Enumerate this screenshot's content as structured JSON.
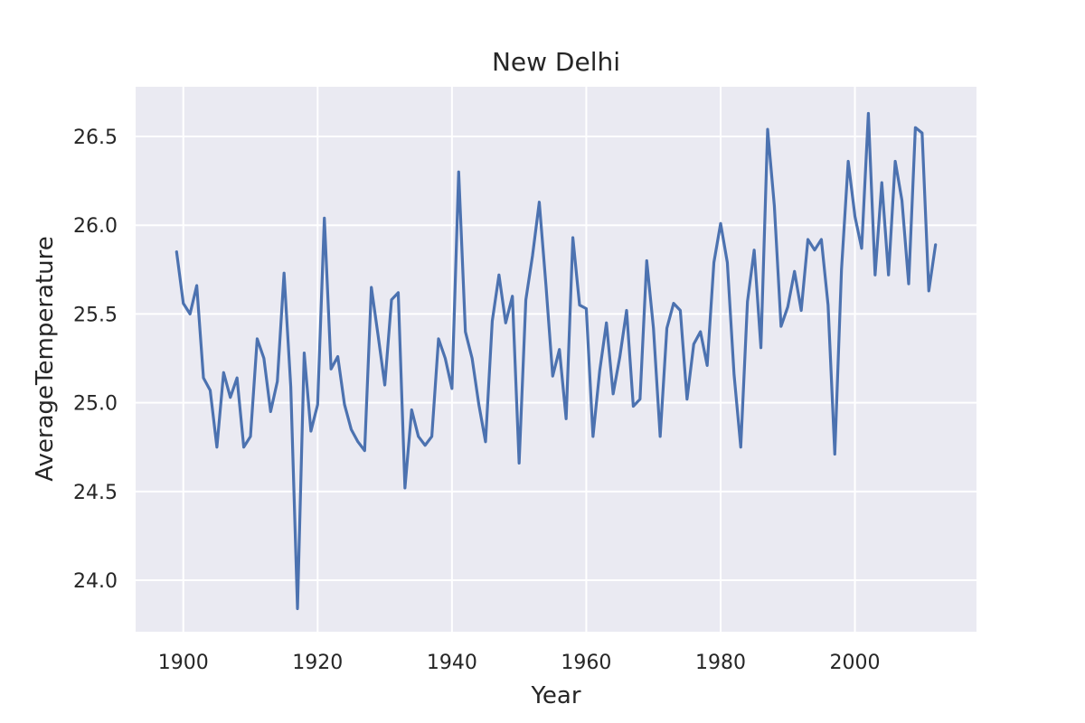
{
  "chart_data": {
    "type": "line",
    "title": "New Delhi",
    "xlabel": "Year",
    "ylabel": "AverageTemperature",
    "xlim": [
      1892.9,
      2018.1
    ],
    "ylim": [
      23.71,
      26.78
    ],
    "xticks": [
      1900,
      1920,
      1940,
      1960,
      1980,
      2000
    ],
    "yticks": [
      24.0,
      24.5,
      25.0,
      25.5,
      26.0,
      26.5
    ],
    "ytick_labels": [
      "24.0",
      "24.5",
      "25.0",
      "25.5",
      "26.0",
      "26.5"
    ],
    "grid": true,
    "background_color": "#eaeaf2",
    "grid_color": "#ffffff",
    "line_color": "#4c72b0",
    "series": [
      {
        "x": [
          1899,
          1900,
          1901,
          1902,
          1903,
          1904,
          1905,
          1906,
          1907,
          1908,
          1909,
          1910,
          1911,
          1912,
          1913,
          1914,
          1915,
          1916,
          1917,
          1918,
          1919,
          1920,
          1921,
          1922,
          1923,
          1924,
          1925,
          1926,
          1927,
          1928,
          1929,
          1930,
          1931,
          1932,
          1933,
          1934,
          1935,
          1936,
          1937,
          1938,
          1939,
          1940,
          1941,
          1942,
          1943,
          1944,
          1945,
          1946,
          1947,
          1948,
          1949,
          1950,
          1951,
          1952,
          1953,
          1954,
          1955,
          1956,
          1957,
          1958,
          1959,
          1960,
          1961,
          1962,
          1963,
          1964,
          1965,
          1966,
          1967,
          1968,
          1969,
          1970,
          1971,
          1972,
          1973,
          1974,
          1975,
          1976,
          1977,
          1978,
          1979,
          1980,
          1981,
          1982,
          1983,
          1984,
          1985,
          1986,
          1987,
          1988,
          1989,
          1990,
          1991,
          1992,
          1993,
          1994,
          1995,
          1996,
          1997,
          1998,
          1999,
          2000,
          2001,
          2002,
          2003,
          2004,
          2005,
          2006,
          2007,
          2008,
          2009,
          2010,
          2011,
          2012
        ],
        "y": [
          25.85,
          25.56,
          25.5,
          25.66,
          25.14,
          25.07,
          24.75,
          25.17,
          25.03,
          25.14,
          24.75,
          24.81,
          25.36,
          25.25,
          24.95,
          25.12,
          25.73,
          25.09,
          23.84,
          25.28,
          24.84,
          24.99,
          26.04,
          25.19,
          25.26,
          24.99,
          24.85,
          24.78,
          24.73,
          25.65,
          25.38,
          25.1,
          25.58,
          25.62,
          24.52,
          24.96,
          24.81,
          24.76,
          24.81,
          25.36,
          25.25,
          25.08,
          26.3,
          25.4,
          25.25,
          24.99,
          24.78,
          25.46,
          25.72,
          25.45,
          25.6,
          24.66,
          25.58,
          25.83,
          26.13,
          25.66,
          25.15,
          25.3,
          24.91,
          25.93,
          25.55,
          25.53,
          24.81,
          25.18,
          25.45,
          25.05,
          25.26,
          25.52,
          24.98,
          25.02,
          25.8,
          25.42,
          24.81,
          25.42,
          25.56,
          25.52,
          25.02,
          25.33,
          25.4,
          25.21,
          25.79,
          26.01,
          25.79,
          25.16,
          24.75,
          25.57,
          25.86,
          25.31,
          26.54,
          26.11,
          25.43,
          25.54,
          25.74,
          25.52,
          25.92,
          25.86,
          25.92,
          25.55,
          24.71,
          25.75,
          26.36,
          26.05,
          25.87,
          26.63,
          25.72,
          26.24,
          25.72,
          26.36,
          26.14,
          25.67,
          26.55,
          26.52,
          25.63,
          25.89
        ]
      }
    ]
  }
}
